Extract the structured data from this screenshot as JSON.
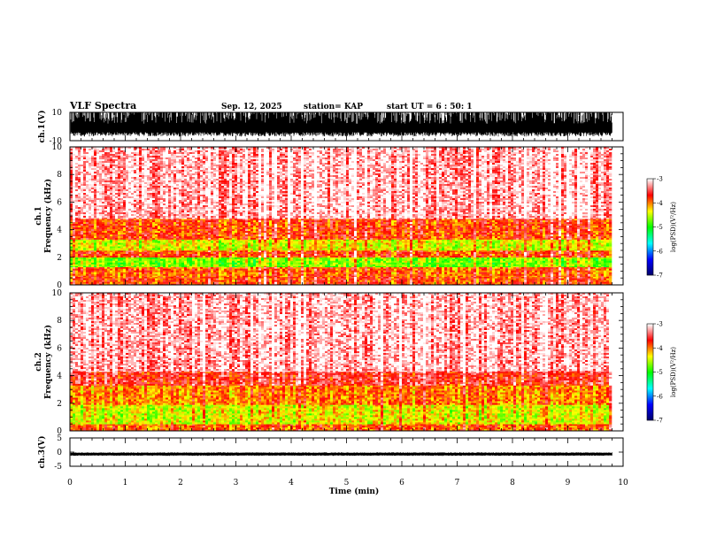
{
  "header": {
    "title": "VLF Spectra",
    "date": "Sep. 12, 2025",
    "station": "station= KAP",
    "start": "start UT = 6 : 50: 1"
  },
  "chart_data": [
    {
      "type": "line",
      "name": "ch1-waveform",
      "ylabel": "ch.1(V)",
      "ylim": [
        -10,
        10
      ],
      "ytick_labels": [
        "10",
        "-10"
      ],
      "xlim": [
        0,
        10
      ],
      "data_end_min": 9.8,
      "amplitude_range": [
        -7,
        10
      ],
      "style": "dense-black-clipped"
    },
    {
      "type": "heatmap",
      "name": "ch1-spectrogram",
      "ylabel_top": "ch.1",
      "ylabel": "Frequency (kHz)",
      "ylim": [
        0,
        10
      ],
      "ytick_labels": [
        "0",
        "2",
        "4",
        "6",
        "8",
        "10"
      ],
      "xlim": [
        0,
        10
      ],
      "data_end_min": 9.8,
      "colorbar": {
        "label": "log(PSD)(V²/Hz)",
        "range": [
          -7,
          -3
        ],
        "tick_labels": [
          "-3",
          "-4",
          "-5",
          "-6",
          "-7"
        ],
        "colors": [
          "#000066",
          "#0000ff",
          "#00ffff",
          "#00ff00",
          "#ffff00",
          "#ff0000",
          "#ffffff"
        ]
      },
      "bands": [
        {
          "f": [
            0,
            0.6
          ],
          "level": -3.8
        },
        {
          "f": [
            0.6,
            1.3
          ],
          "level": -3.9
        },
        {
          "f": [
            1.3,
            2.0
          ],
          "level": -4.7
        },
        {
          "f": [
            2.0,
            2.5
          ],
          "level": -3.8
        },
        {
          "f": [
            2.5,
            3.3
          ],
          "level": -4.4
        },
        {
          "f": [
            3.3,
            4.8
          ],
          "level": -3.8
        },
        {
          "f": [
            4.8,
            10
          ],
          "level": -3.2
        }
      ]
    },
    {
      "type": "heatmap",
      "name": "ch2-spectrogram",
      "ylabel_top": "ch.2",
      "ylabel": "Frequency (kHz)",
      "ylim": [
        0,
        10
      ],
      "ytick_labels": [
        "0",
        "2",
        "4",
        "6",
        "8",
        "10"
      ],
      "xlim": [
        0,
        10
      ],
      "data_end_min": 9.8,
      "colorbar": {
        "label": "log(PSD)(V²/Hz)",
        "range": [
          -7,
          -3
        ],
        "tick_labels": [
          "-3",
          "-4",
          "-5",
          "-6",
          "-7"
        ],
        "colors": [
          "#000066",
          "#0000ff",
          "#00ffff",
          "#00ff00",
          "#ffff00",
          "#ff0000",
          "#ffffff"
        ]
      },
      "bands": [
        {
          "f": [
            0,
            0.5
          ],
          "level": -3.9
        },
        {
          "f": [
            0.5,
            1.9
          ],
          "level": -4.4
        },
        {
          "f": [
            1.9,
            3.3
          ],
          "level": -4.0
        },
        {
          "f": [
            3.3,
            4.3
          ],
          "level": -3.6
        },
        {
          "f": [
            4.3,
            10
          ],
          "level": -3.2
        }
      ]
    },
    {
      "type": "line",
      "name": "ch3-waveform",
      "ylabel": "ch.3(V)",
      "ylim": [
        -5,
        5
      ],
      "ytick_labels": [
        "5",
        "0",
        "-5"
      ],
      "xlim": [
        0,
        10
      ],
      "data_end_min": 9.8,
      "amplitude_range": [
        -1.3,
        -0.1
      ],
      "style": "dense-black-band"
    }
  ],
  "x_axis": {
    "label": "Time (min)",
    "tick_labels": [
      "0",
      "1",
      "2",
      "3",
      "4",
      "5",
      "6",
      "7",
      "8",
      "9",
      "10"
    ]
  }
}
